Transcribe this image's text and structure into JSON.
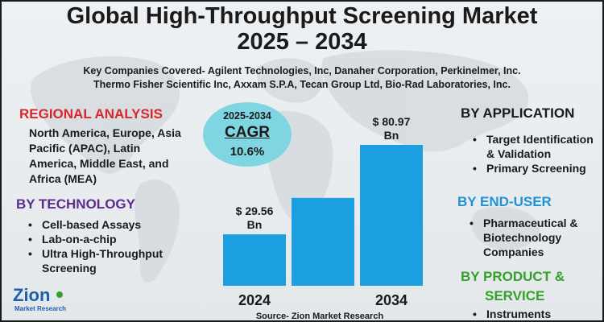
{
  "title_line1": "Global High-Throughput Screening Market",
  "title_line2": "2025 – 2034",
  "companies_line1": "Key Companies Covered- Agilent Technologies, Inc, Danaher Corporation, Perkinelmer, Inc.",
  "companies_line2": "Thermo Fisher Scientific Inc, Axxam S.P.A, Tecan Group Ltd, Bio-Rad Laboratories, Inc.",
  "regional": {
    "heading": "REGIONAL ANALYSIS",
    "text": "North America, Europe, Asia Pacific (APAC), Latin America, Middle East, and Africa (MEA)"
  },
  "technology": {
    "heading": "BY TECHNOLOGY",
    "items": [
      "Cell-based Assays",
      "Lab-on-a-chip",
      "Ultra High-Throughput Screening"
    ]
  },
  "application": {
    "heading": "BY APPLICATION",
    "items": [
      "Target Identification & Validation",
      "Primary Screening"
    ]
  },
  "end_user": {
    "heading": "BY END-USER",
    "items": [
      "Pharmaceutical & Biotechnology Companies"
    ]
  },
  "product_service": {
    "heading_line1": "BY PRODUCT &",
    "heading_line2": "SERVICE",
    "items": [
      "Instruments"
    ]
  },
  "cagr": {
    "period": "2025-2034",
    "label": "CAGR",
    "value": "10.6%"
  },
  "source": "Source- Zion Market Research",
  "logo": {
    "main": "Zion",
    "sub": "Market Research"
  },
  "colors": {
    "bar": "#1c9fe0",
    "regional": "#d9262b",
    "technology": "#5b2c8f",
    "application": "#1a1a1a",
    "end_user": "#1f93d3",
    "product_service": "#33a12a",
    "cagr_circle": "#7fd6e2"
  },
  "chart_data": {
    "type": "bar",
    "categories": [
      "2024",
      "",
      "2034"
    ],
    "values": [
      29.56,
      50.5,
      80.97
    ],
    "data_labels": [
      "$ 29.56 Bn",
      "",
      "$ 80.97 Bn"
    ],
    "unit": "Bn",
    "title": "",
    "xlabel": "",
    "ylabel": "",
    "ylim": [
      0,
      80.97
    ]
  }
}
